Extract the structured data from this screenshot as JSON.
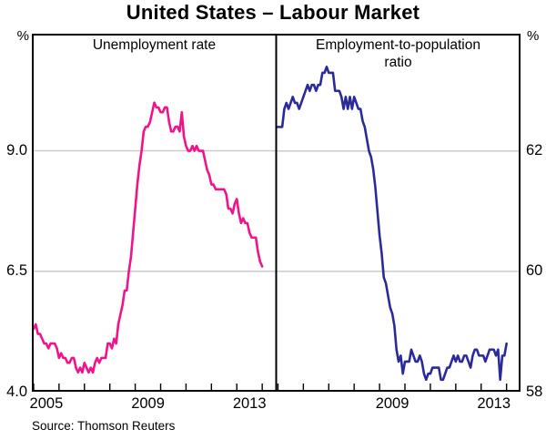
{
  "title": "United States – Labour Market",
  "panels": {
    "left_label": "Unemployment rate",
    "right_label": "Employment-to-population ratio"
  },
  "axes": {
    "left_unit": "%",
    "right_unit": "%",
    "left_labels": [
      "9.0",
      "6.5",
      "4.0"
    ],
    "right_labels": [
      "62",
      "60",
      "58"
    ],
    "left_x_labels": [
      "2005",
      "2009",
      "2013"
    ],
    "right_x_labels": [
      "2009",
      "2013"
    ]
  },
  "source": "Source: Thomson Reuters",
  "colors": {
    "unemployment_line": "#F0148C",
    "employment_line": "#2A2A9B",
    "gridline": "#CBCBCB",
    "axis": "#000000"
  },
  "chart_data": {
    "type": "line",
    "layout": "two-panel",
    "title": "United States – Labour Market",
    "frequency": "monthly",
    "start": "2005-01",
    "end": "2014-01",
    "x_range_years": [
      2004.93,
      2014.55
    ],
    "x_tick_years": [
      2005,
      2006,
      2007,
      2008,
      2009,
      2010,
      2011,
      2012,
      2013,
      2014
    ],
    "panels": [
      {
        "label": "Unemployment rate",
        "unit": "%",
        "color": "#F0148C",
        "ylim": [
          4.0,
          11.43
        ],
        "gridlines": [
          6.5,
          9.0
        ],
        "axis_tick_values": [
          4.0,
          6.5,
          9.0
        ],
        "x_labels": [
          "2005",
          "2009",
          "2013"
        ],
        "values": [
          5.3,
          5.4,
          5.2,
          5.2,
          5.1,
          5.0,
          5.0,
          4.9,
          5.0,
          5.0,
          5.0,
          4.9,
          4.7,
          4.8,
          4.7,
          4.7,
          4.6,
          4.6,
          4.7,
          4.7,
          4.5,
          4.4,
          4.5,
          4.4,
          4.6,
          4.5,
          4.4,
          4.5,
          4.4,
          4.6,
          4.7,
          4.6,
          4.7,
          4.7,
          4.7,
          5.0,
          5.0,
          4.9,
          5.1,
          5.0,
          5.4,
          5.6,
          5.8,
          6.1,
          6.1,
          6.5,
          6.8,
          7.3,
          7.8,
          8.3,
          8.7,
          9.0,
          9.4,
          9.5,
          9.5,
          9.6,
          9.8,
          10.0,
          9.9,
          9.9,
          9.8,
          9.8,
          9.9,
          9.9,
          9.6,
          9.4,
          9.4,
          9.5,
          9.5,
          9.4,
          9.8,
          9.3,
          9.1,
          9.0,
          9.0,
          9.1,
          9.0,
          9.1,
          9.0,
          9.0,
          9.0,
          8.8,
          8.6,
          8.5,
          8.3,
          8.3,
          8.2,
          8.2,
          8.2,
          8.2,
          8.2,
          8.1,
          7.8,
          7.8,
          7.7,
          7.9,
          8.0,
          7.7,
          7.5,
          7.6,
          7.5,
          7.5,
          7.3,
          7.2,
          7.2,
          7.2,
          6.9,
          6.7,
          6.6
        ]
      },
      {
        "label": "Employment-to-population ratio",
        "unit": "%",
        "color": "#2A2A9B",
        "ylim": [
          58.0,
          63.95
        ],
        "gridlines": [
          60,
          62
        ],
        "axis_tick_values": [
          58,
          60,
          62
        ],
        "x_labels": [
          "2009",
          "2013"
        ],
        "values": [
          62.4,
          62.4,
          62.4,
          62.7,
          62.8,
          62.7,
          62.8,
          62.9,
          62.8,
          62.8,
          62.7,
          62.8,
          62.9,
          63.0,
          63.1,
          63.0,
          63.1,
          63.1,
          63.0,
          63.1,
          63.1,
          63.3,
          63.3,
          63.4,
          63.3,
          63.3,
          63.3,
          63.0,
          63.0,
          63.0,
          62.9,
          62.7,
          62.9,
          62.7,
          62.9,
          62.7,
          62.9,
          62.8,
          62.7,
          62.7,
          62.5,
          62.4,
          62.2,
          62.0,
          61.9,
          61.7,
          61.4,
          61.0,
          60.6,
          60.3,
          59.9,
          59.8,
          59.6,
          59.4,
          59.3,
          59.1,
          58.7,
          58.5,
          58.6,
          58.3,
          58.5,
          58.5,
          58.5,
          58.7,
          58.6,
          58.5,
          58.5,
          58.6,
          58.5,
          58.3,
          58.2,
          58.3,
          58.3,
          58.4,
          58.4,
          58.4,
          58.4,
          58.2,
          58.2,
          58.3,
          58.4,
          58.4,
          58.5,
          58.6,
          58.5,
          58.6,
          58.5,
          58.5,
          58.6,
          58.6,
          58.5,
          58.4,
          58.6,
          58.7,
          58.7,
          58.6,
          58.6,
          58.6,
          58.5,
          58.6,
          58.7,
          58.7,
          58.7,
          58.6,
          58.7,
          58.2,
          58.6,
          58.6,
          58.8
        ]
      }
    ]
  }
}
